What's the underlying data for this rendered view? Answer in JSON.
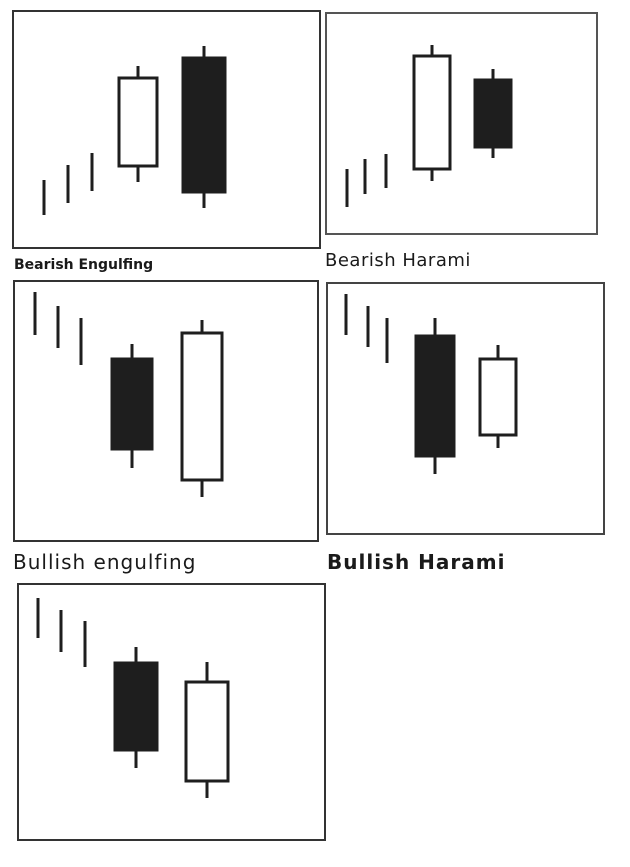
{
  "colors": {
    "frame": "#333333",
    "filled_body": "#1e1e1e",
    "hollow_body": "#ffffff",
    "line": "#1e1e1e"
  },
  "panels": [
    {
      "caption": "Bearish Engulfing",
      "pattern": "bearish-engulfing",
      "candles": [
        {
          "kind": "tick"
        },
        {
          "kind": "tick"
        },
        {
          "kind": "tick"
        },
        {
          "kind": "candle",
          "color": "hollow"
        },
        {
          "kind": "candle",
          "color": "filled"
        }
      ]
    },
    {
      "caption": "Bearish Harami",
      "pattern": "bearish-harami",
      "candles": [
        {
          "kind": "tick"
        },
        {
          "kind": "tick"
        },
        {
          "kind": "tick"
        },
        {
          "kind": "candle",
          "color": "hollow"
        },
        {
          "kind": "candle",
          "color": "filled"
        }
      ]
    },
    {
      "caption": "Bullish engulfing",
      "pattern": "bullish-engulfing",
      "candles": [
        {
          "kind": "tick"
        },
        {
          "kind": "tick"
        },
        {
          "kind": "tick"
        },
        {
          "kind": "candle",
          "color": "filled"
        },
        {
          "kind": "candle",
          "color": "hollow"
        }
      ]
    },
    {
      "caption": "Bullish Harami",
      "pattern": "bullish-harami",
      "candles": [
        {
          "kind": "tick"
        },
        {
          "kind": "tick"
        },
        {
          "kind": "tick"
        },
        {
          "kind": "candle",
          "color": "filled"
        },
        {
          "kind": "candle",
          "color": "hollow"
        }
      ]
    },
    {
      "caption": "",
      "pattern": "unlabeled",
      "candles": [
        {
          "kind": "tick"
        },
        {
          "kind": "tick"
        },
        {
          "kind": "tick"
        },
        {
          "kind": "candle",
          "color": "filled"
        },
        {
          "kind": "candle",
          "color": "hollow"
        }
      ]
    }
  ]
}
